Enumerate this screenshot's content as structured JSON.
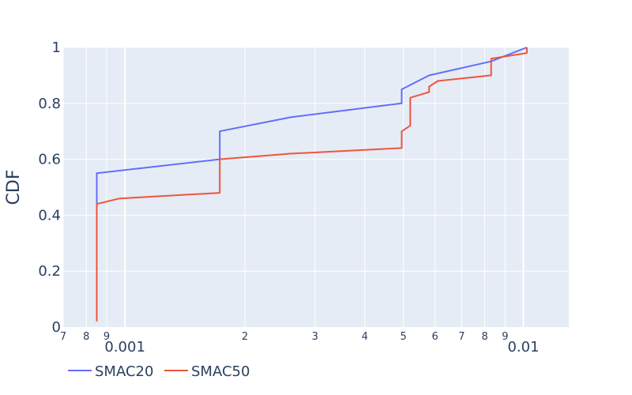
{
  "chart_data": {
    "type": "line",
    "line_shape": "step",
    "xscale": "log",
    "xlim": [
      0.0007,
      0.013
    ],
    "ylim": [
      0,
      1
    ],
    "ylabel": "CDF",
    "xlabel": "",
    "title": "",
    "grid": true,
    "legend": "bottom-left-horizontal",
    "y_ticks": [
      {
        "value": 0,
        "label": "0"
      },
      {
        "value": 0.2,
        "label": "0.2"
      },
      {
        "value": 0.4,
        "label": "0.4"
      },
      {
        "value": 0.6,
        "label": "0.6"
      },
      {
        "value": 0.8,
        "label": "0.8"
      },
      {
        "value": 1,
        "label": "1"
      }
    ],
    "x_major_ticks": [
      {
        "value": 0.001,
        "label": "0.001"
      },
      {
        "value": 0.01,
        "label": "0.01"
      }
    ],
    "x_minor_ticks": [
      {
        "value": 0.0007,
        "label": "7"
      },
      {
        "value": 0.0008,
        "label": "8"
      },
      {
        "value": 0.0009,
        "label": "9"
      },
      {
        "value": 0.002,
        "label": "2"
      },
      {
        "value": 0.003,
        "label": "3"
      },
      {
        "value": 0.004,
        "label": "4"
      },
      {
        "value": 0.005,
        "label": "5"
      },
      {
        "value": 0.006,
        "label": "6"
      },
      {
        "value": 0.007,
        "label": "7"
      },
      {
        "value": 0.008,
        "label": "8"
      },
      {
        "value": 0.009,
        "label": "9"
      }
    ],
    "series": [
      {
        "name": "SMAC20",
        "color": "#636efa",
        "points": [
          [
            0.00085,
            0.05
          ],
          [
            0.00085,
            0.55
          ],
          [
            0.00173,
            0.6
          ],
          [
            0.00173,
            0.7
          ],
          [
            0.0026,
            0.75
          ],
          [
            0.00495,
            0.8
          ],
          [
            0.00495,
            0.85
          ],
          [
            0.0058,
            0.9
          ],
          [
            0.0083,
            0.95
          ],
          [
            0.0102,
            1.0
          ]
        ]
      },
      {
        "name": "SMAC50",
        "color": "#ef553b",
        "points": [
          [
            0.00085,
            0.02
          ],
          [
            0.00085,
            0.44
          ],
          [
            0.00097,
            0.46
          ],
          [
            0.00173,
            0.48
          ],
          [
            0.00173,
            0.6
          ],
          [
            0.0026,
            0.62
          ],
          [
            0.00495,
            0.64
          ],
          [
            0.00495,
            0.7
          ],
          [
            0.0052,
            0.72
          ],
          [
            0.0052,
            0.82
          ],
          [
            0.0058,
            0.84
          ],
          [
            0.0058,
            0.86
          ],
          [
            0.0061,
            0.88
          ],
          [
            0.0083,
            0.9
          ],
          [
            0.0083,
            0.96
          ],
          [
            0.0102,
            0.98
          ],
          [
            0.0102,
            1.0
          ]
        ]
      }
    ]
  }
}
